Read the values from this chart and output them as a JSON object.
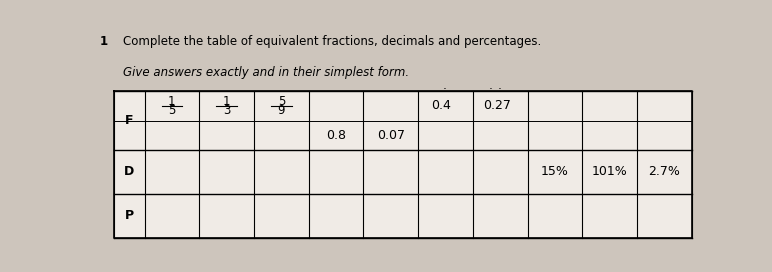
{
  "title_line1": "Complete the table of equivalent fractions, decimals and percentages.",
  "title_line2": "Give answers exactly and in their simplest form.",
  "question_num": "1",
  "background_color": "#cdc5bc",
  "table_fill": "#f0ebe6",
  "num_cols": 11,
  "col_widths_raw": [
    0.55,
    1.0,
    1.0,
    1.0,
    1.0,
    1.0,
    1.0,
    1.0,
    1.0,
    1.0,
    1.0
  ],
  "row_labels": [
    "F",
    "D",
    "P"
  ],
  "cells_F_top": {
    "1": {
      "type": "fraction",
      "num": "1",
      "den": "5"
    },
    "2": {
      "type": "fraction",
      "num": "1",
      "den": "3"
    },
    "3": {
      "type": "fraction",
      "num": "5",
      "den": "9"
    },
    "4": {
      "type": "plain",
      "text": ""
    },
    "5": {
      "type": "plain",
      "text": ""
    },
    "6": {
      "type": "dot1",
      "pre": "0.",
      "dig": "4"
    },
    "7": {
      "type": "dot2",
      "pre": "0.",
      "d1": "2",
      "d2": "7"
    },
    "8": {
      "type": "plain",
      "text": ""
    },
    "9": {
      "type": "plain",
      "text": ""
    },
    "10": {
      "type": "plain",
      "text": ""
    }
  },
  "cells_F_bot": {
    "4": {
      "type": "plain",
      "text": "0.8"
    },
    "5": {
      "type": "plain",
      "text": "0.07"
    }
  },
  "cells_D": {
    "8": {
      "type": "plain",
      "text": "15%"
    },
    "9": {
      "type": "plain",
      "text": "101%"
    },
    "10": {
      "type": "plain",
      "text": "2.7%"
    }
  },
  "cells_P": {},
  "font_size_title": 8.5,
  "font_size_cell": 9,
  "font_size_label": 9
}
